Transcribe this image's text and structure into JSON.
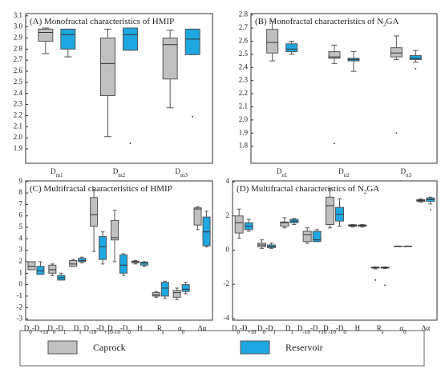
{
  "chart_data": [
    {
      "type": "box",
      "title": [
        "(A) Monofractal characteristics of HMIP"
      ],
      "categories": [
        [
          "D",
          "m1"
        ],
        [
          "D",
          "m2"
        ],
        [
          "D",
          "m3"
        ]
      ],
      "ylim": [
        1.77,
        3.12
      ],
      "yticks": [
        1.9,
        {
          "value": 2,
          "label": "2.0"
        },
        2.1,
        2.2,
        2.3,
        2.4,
        2.5,
        2.6,
        2.7,
        2.8,
        2.9,
        {
          "value": 3,
          "label": "3.0"
        },
        3.1
      ],
      "series": [
        {
          "name": "Caprock",
          "color": "#c0c0c0",
          "boxes": [
            {
              "min": 2.76,
              "q1": 2.87,
              "median": 2.95,
              "q3": 2.98,
              "max": 2.99
            },
            {
              "min": 2.01,
              "q1": 2.38,
              "median": 2.67,
              "q3": 2.9,
              "max": 2.98
            },
            {
              "min": 2.27,
              "q1": 2.53,
              "median": 2.84,
              "q3": 2.9,
              "max": 2.97
            }
          ]
        },
        {
          "name": "Reservoir",
          "color": "#1ea7e1",
          "boxes": [
            {
              "min": 2.73,
              "q1": 2.8,
              "median": 2.93,
              "q3": 2.98,
              "max": 2.98
            },
            {
              "min": 2.79,
              "q1": 2.79,
              "median": 2.93,
              "q3": 2.99,
              "max": 2.99,
              "outliers": [
                1.95
              ]
            },
            {
              "min": 2.75,
              "q1": 2.75,
              "median": 2.89,
              "q3": 2.98,
              "max": 2.98,
              "outliers": [
                2.19
              ]
            }
          ]
        }
      ]
    },
    {
      "type": "box",
      "title": [
        "(B) Monofractal characteristics of  N",
        "2",
        "GA"
      ],
      "categories": [
        [
          "D",
          "n1"
        ],
        [
          "D",
          "n2"
        ],
        [
          "D",
          "n3"
        ]
      ],
      "ylim": [
        1.67,
        2.81
      ],
      "yticks": [
        1.8,
        1.9,
        {
          "value": 2,
          "label": "2.0"
        },
        2.1,
        2.2,
        2.3,
        2.4,
        2.5,
        2.6,
        2.7,
        2.8
      ],
      "series": [
        {
          "color": "#c0c0c0",
          "boxes": [
            {
              "min": 2.45,
              "q1": 2.51,
              "median": 2.59,
              "q3": 2.69,
              "max": 2.75
            },
            {
              "min": 2.43,
              "q1": 2.47,
              "median": 2.48,
              "q3": 2.52,
              "max": 2.57,
              "outliers": [
                1.82
              ]
            },
            {
              "min": 2.46,
              "q1": 2.48,
              "median": 2.51,
              "q3": 2.55,
              "max": 2.64,
              "outliers": [
                1.9
              ]
            }
          ]
        },
        {
          "color": "#1ea7e1",
          "boxes": [
            {
              "min": 2.5,
              "q1": 2.52,
              "median": 2.54,
              "q3": 2.58,
              "max": 2.6
            },
            {
              "min": 2.37,
              "q1": 2.45,
              "median": 2.46,
              "q3": 2.47,
              "max": 2.52
            },
            {
              "min": 2.44,
              "q1": 2.46,
              "median": 2.47,
              "q3": 2.49,
              "max": 2.53,
              "outliers": [
                2.39
              ]
            }
          ]
        }
      ]
    },
    {
      "type": "box",
      "title": [
        "(C) Multifractal characteristics of HMIP"
      ],
      "categories": [
        [
          "D",
          "0",
          "-D",
          "+10"
        ],
        [
          "D",
          "0",
          "-D",
          "1"
        ],
        [
          "D",
          "1"
        ],
        [
          "D",
          "-10",
          "-D",
          "+10"
        ],
        [
          "D",
          "-10",
          "-D",
          "0"
        ],
        [
          "H"
        ],
        [
          "R",
          "s"
        ],
        [
          "α",
          "0"
        ],
        [
          "Δα"
        ]
      ],
      "ylim": [
        -3.1,
        9.05
      ],
      "yticks": [
        -3,
        -2,
        -1,
        0,
        1,
        2,
        3,
        4,
        5,
        6,
        7,
        8,
        9
      ],
      "series": [
        {
          "color": "#c0c0c0",
          "boxes": [
            {
              "min": 1.3,
              "q1": 1.3,
              "median": 1.6,
              "q3": 2.0,
              "max": 2.0
            },
            {
              "min": 0.8,
              "q1": 1.0,
              "median": 1.3,
              "q3": 1.7,
              "max": 1.8
            },
            {
              "min": 1.6,
              "q1": 1.6,
              "median": 1.8,
              "q3": 2.1,
              "max": 2.2
            },
            {
              "min": 2.9,
              "q1": 5.1,
              "median": 6.1,
              "q3": 7.6,
              "max": 8.3
            },
            {
              "min": 2.0,
              "q1": 3.9,
              "median": 4.1,
              "q3": 5.6,
              "max": 6.5
            },
            {
              "min": 1.8,
              "q1": 1.9,
              "median": 2.0,
              "q3": 2.05,
              "max": 2.1
            },
            {
              "min": -1.1,
              "q1": -1.0,
              "median": -0.9,
              "q3": -0.7,
              "max": -0.6
            },
            {
              "min": -1.3,
              "q1": -1.1,
              "median": -0.7,
              "q3": -0.5,
              "max": -0.3
            },
            {
              "min": 4.8,
              "q1": 5.2,
              "median": 6.6,
              "q3": 6.7,
              "max": 6.8
            }
          ]
        },
        {
          "color": "#1ea7e1",
          "boxes": [
            {
              "min": 0.9,
              "q1": 0.9,
              "median": 1.2,
              "q3": 1.6,
              "max": 2.0
            },
            {
              "min": 0.4,
              "q1": 0.4,
              "median": 0.6,
              "q3": 0.8,
              "max": 1.0
            },
            {
              "min": 1.9,
              "q1": 2.0,
              "median": 2.1,
              "q3": 2.3,
              "max": 2.4
            },
            {
              "min": 1.8,
              "q1": 2.2,
              "median": 3.3,
              "q3": 4.2,
              "max": 4.6
            },
            {
              "min": 0.8,
              "q1": 1.0,
              "median": 1.7,
              "q3": 2.6,
              "max": 2.7
            },
            {
              "min": 1.6,
              "q1": 1.7,
              "median": 1.9,
              "q3": 1.95,
              "max": 2.0
            },
            {
              "min": -1.2,
              "q1": -1.0,
              "median": -0.3,
              "q3": 0.2,
              "max": 0.3
            },
            {
              "min": -0.8,
              "q1": -0.6,
              "median": -0.4,
              "q3": 0.0,
              "max": 0.2
            },
            {
              "min": 3.3,
              "q1": 3.4,
              "median": 4.6,
              "q3": 5.9,
              "max": 6.4
            }
          ]
        }
      ]
    },
    {
      "type": "box",
      "title": [
        "(D) Multifractal characteristics of N",
        "2",
        "GA"
      ],
      "categories": [
        [
          "D",
          "0",
          "-D",
          "+10"
        ],
        [
          "D",
          "0",
          "-D",
          "1"
        ],
        [
          "D",
          "1"
        ],
        [
          "D",
          "-10",
          "-D",
          "+10"
        ],
        [
          "D",
          "-10",
          "-D",
          "0"
        ],
        [
          "H"
        ],
        [
          "R",
          "s"
        ],
        [
          "α",
          "0"
        ],
        [
          "Δα"
        ]
      ],
      "ylim": [
        -4.1,
        4.05
      ],
      "yticks": [
        -4,
        -2,
        0,
        2,
        4
      ],
      "series": [
        {
          "color": "#c0c0c0",
          "boxes": [
            {
              "min": 0.7,
              "q1": 1.0,
              "median": 1.6,
              "q3": 2.0,
              "max": 2.4
            },
            {
              "min": 0.1,
              "q1": 0.2,
              "median": 0.3,
              "q3": 0.4,
              "max": 0.6
            },
            {
              "min": 1.3,
              "q1": 1.4,
              "median": 1.6,
              "q3": 1.65,
              "max": 1.9
            },
            {
              "min": 0.4,
              "q1": 0.5,
              "median": 0.9,
              "q3": 1.1,
              "max": 1.3
            },
            {
              "min": 1.3,
              "q1": 1.5,
              "median": 2.6,
              "q3": 3.1,
              "max": 3.6
            },
            {
              "min": 1.35,
              "q1": 1.4,
              "median": 1.45,
              "q3": 1.48,
              "max": 1.5
            },
            {
              "min": -1.1,
              "q1": -1.05,
              "median": -1.02,
              "q3": -1.0,
              "max": -0.98,
              "outliers": [
                -1.75
              ]
            },
            {
              "min": 0.22,
              "q1": 0.22,
              "median": 0.23,
              "q3": 0.23,
              "max": 0.24
            },
            {
              "min": 2.8,
              "q1": 2.85,
              "median": 2.9,
              "q3": 2.95,
              "max": 3.0
            }
          ]
        },
        {
          "color": "#1ea7e1",
          "boxes": [
            {
              "min": 1.1,
              "q1": 1.2,
              "median": 1.4,
              "q3": 1.6,
              "max": 1.8
            },
            {
              "min": 0.1,
              "q1": 0.15,
              "median": 0.2,
              "q3": 0.3,
              "max": 0.4
            },
            {
              "min": 1.5,
              "q1": 1.6,
              "median": 1.7,
              "q3": 1.8,
              "max": 1.85
            },
            {
              "min": 0.5,
              "q1": 0.5,
              "median": 0.6,
              "q3": 1.1,
              "max": 1.2
            },
            {
              "min": 1.4,
              "q1": 1.7,
              "median": 2.1,
              "q3": 2.5,
              "max": 3.0
            },
            {
              "min": 1.35,
              "q1": 1.4,
              "median": 1.45,
              "q3": 1.47,
              "max": 1.5
            },
            {
              "min": -1.08,
              "q1": -1.05,
              "median": -1.03,
              "q3": -1.0,
              "max": -0.98,
              "outliers": [
                -2.05
              ]
            },
            {
              "min": 0.22,
              "q1": 0.22,
              "median": 0.23,
              "q3": 0.23,
              "max": 0.24
            },
            {
              "min": 2.7,
              "q1": 2.85,
              "median": 2.95,
              "q3": 3.05,
              "max": 3.1,
              "outliers": [
                2.35
              ]
            }
          ]
        }
      ]
    }
  ]
}
